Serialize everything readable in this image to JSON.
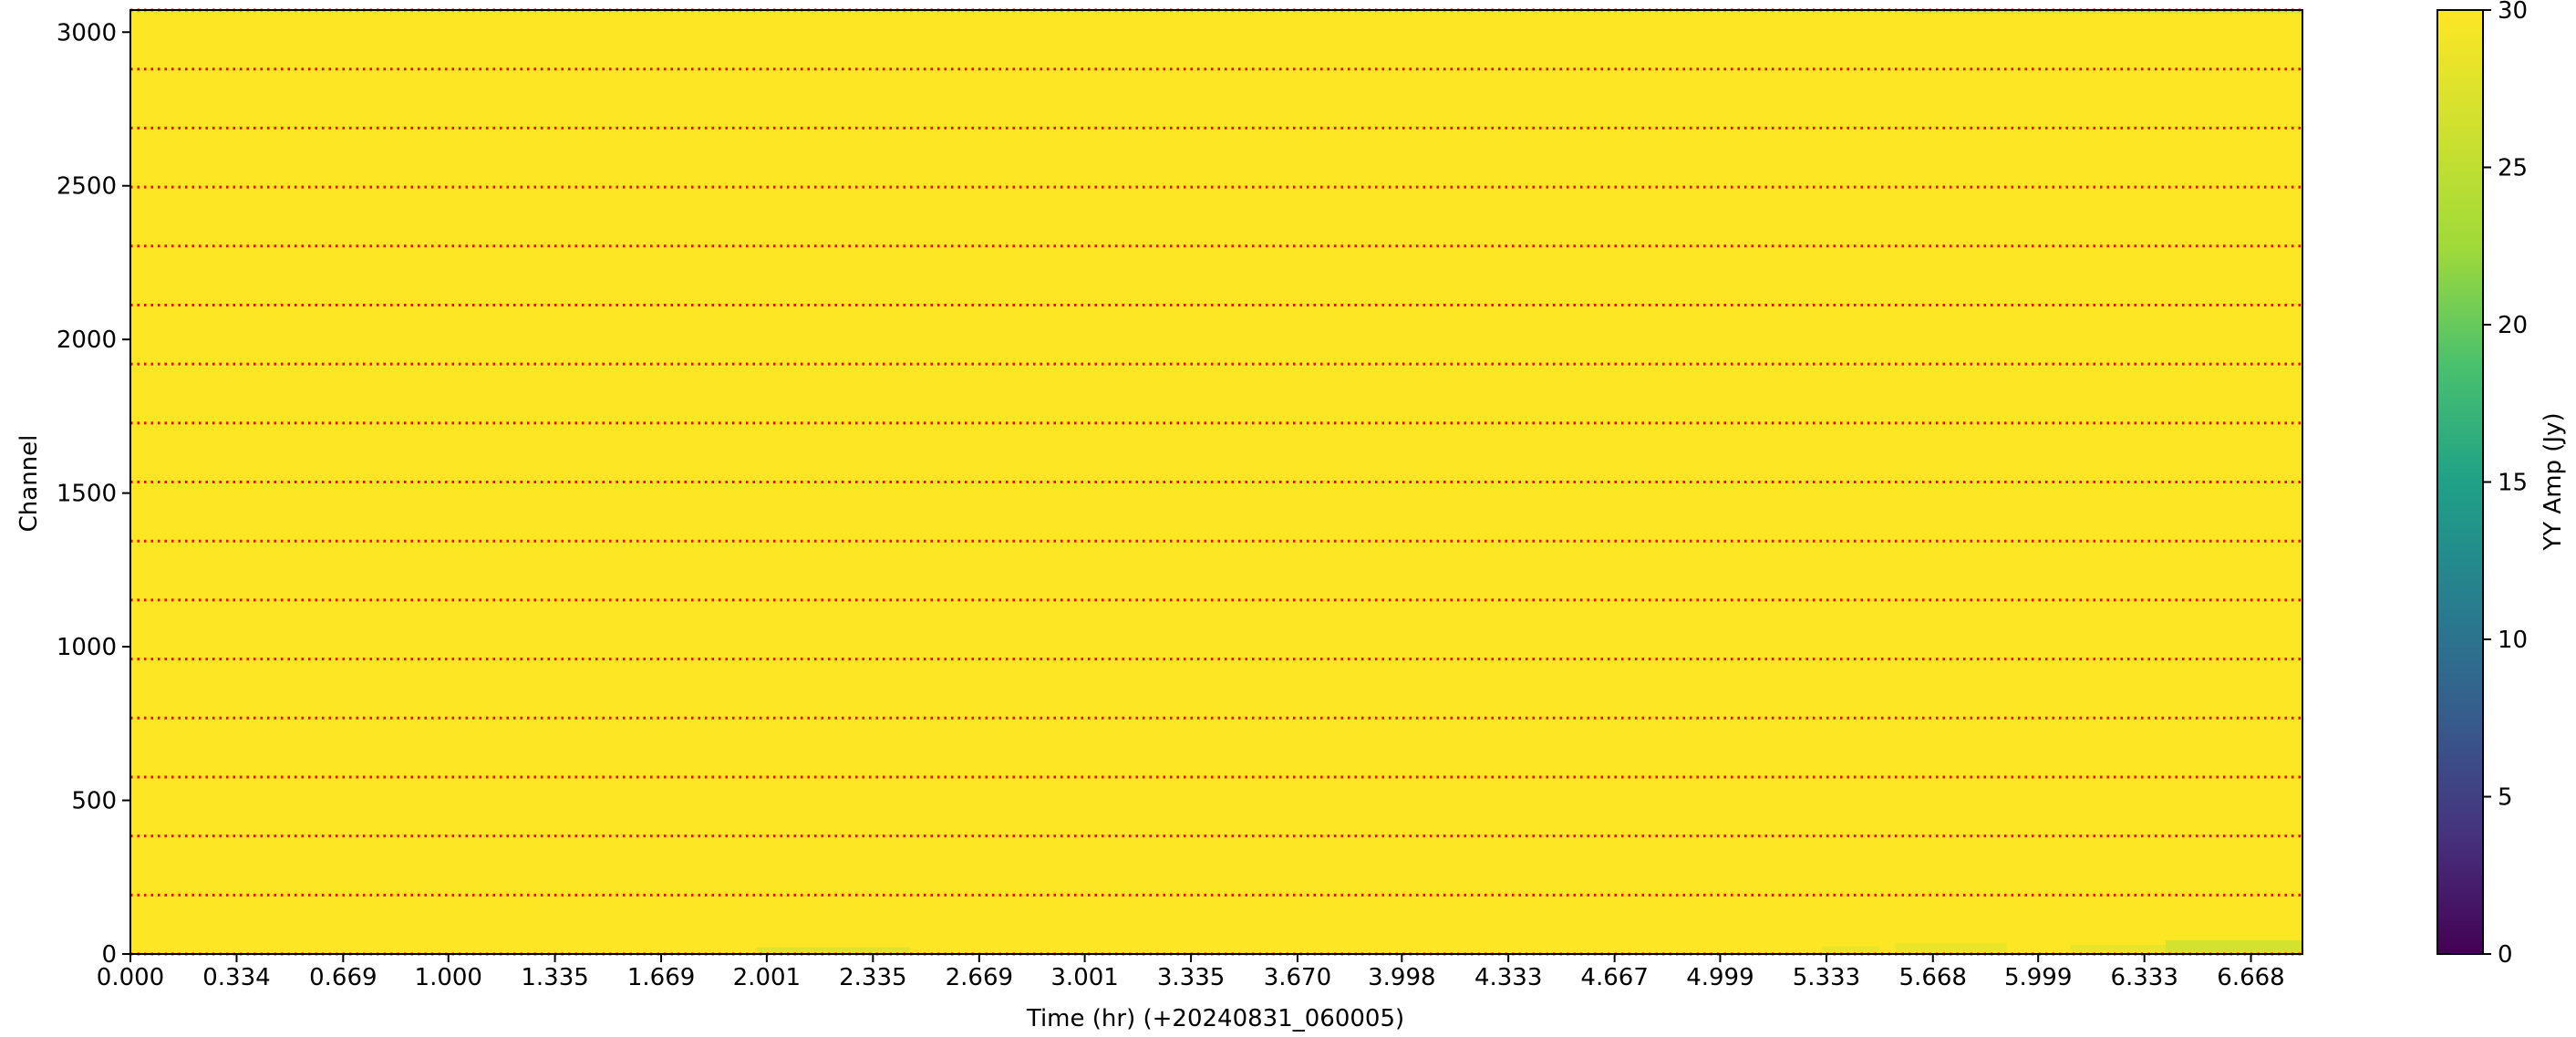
{
  "chart_data": {
    "type": "heatmap",
    "xlabel": "Time (hr) (+20240831_060005)",
    "ylabel": "Channel",
    "x_ticks": [
      "0.000",
      "0.334",
      "0.669",
      "1.000",
      "1.335",
      "1.669",
      "2.001",
      "2.335",
      "2.669",
      "3.001",
      "3.335",
      "3.670",
      "3.998",
      "4.333",
      "4.667",
      "4.999",
      "5.333",
      "5.668",
      "5.999",
      "6.333",
      "6.668"
    ],
    "x_tick_values": [
      0.0,
      0.334,
      0.669,
      1.0,
      1.335,
      1.669,
      2.001,
      2.335,
      2.669,
      3.001,
      3.335,
      3.67,
      3.998,
      4.333,
      4.667,
      4.999,
      5.333,
      5.668,
      5.999,
      6.333,
      6.668
    ],
    "xlim": [
      0.0,
      6.83
    ],
    "y_ticks": [
      0,
      500,
      1000,
      1500,
      2000,
      2500,
      3000
    ],
    "ylim": [
      0,
      3072
    ],
    "colorbar": {
      "label": "YY Amp (Jy)",
      "colormap": "viridis",
      "range": [
        0,
        30
      ],
      "ticks": [
        0,
        5,
        10,
        15,
        20,
        25,
        30
      ]
    },
    "dominant_value": 30,
    "spectral_window_boundaries": [
      0,
      192,
      384,
      576,
      768,
      960,
      1152,
      1344,
      1536,
      1728,
      1920,
      2112,
      2304,
      2496,
      2688,
      2880,
      3072
    ],
    "boundary_line_color": "#ff0000",
    "low_value_patches": [
      {
        "t_start": 1.97,
        "t_end": 2.45,
        "ch_start": 0,
        "ch_end": 22,
        "value": 27
      },
      {
        "t_start": 5.32,
        "t_end": 5.5,
        "ch_start": 0,
        "ch_end": 25,
        "value": 28
      },
      {
        "t_start": 5.55,
        "t_end": 5.9,
        "ch_start": 0,
        "ch_end": 35,
        "value": 28
      },
      {
        "t_start": 6.1,
        "t_end": 6.4,
        "ch_start": 0,
        "ch_end": 30,
        "value": 28
      },
      {
        "t_start": 6.4,
        "t_end": 6.83,
        "ch_start": 0,
        "ch_end": 45,
        "value": 26
      },
      {
        "t_start": 5.6,
        "t_end": 6.83,
        "ch_start": 3060,
        "ch_end": 3072,
        "value": 27
      }
    ]
  }
}
